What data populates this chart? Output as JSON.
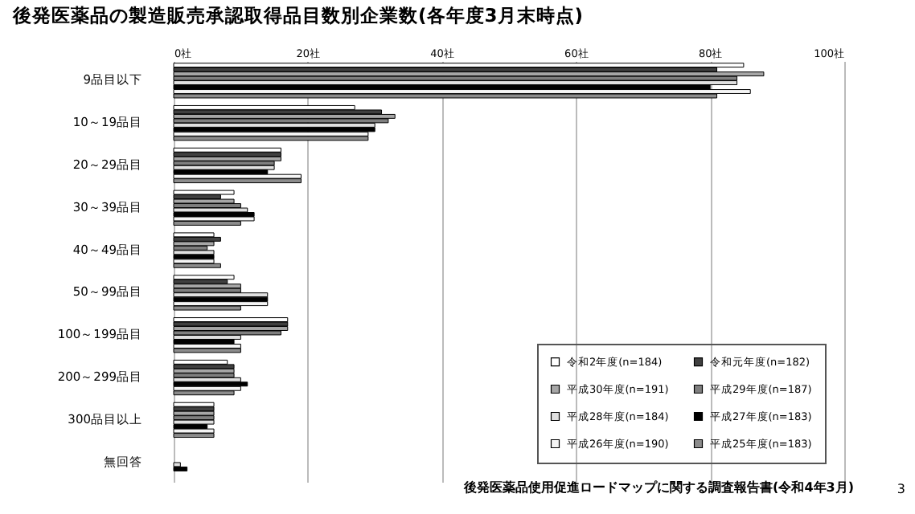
{
  "chart_data": {
    "type": "bar",
    "orientation": "horizontal",
    "title": "後発医薬品の製造販売承認取得品目数別企業数(各年度3月末時点)",
    "categories": [
      "9品目以下",
      "10～19品目",
      "20～29品目",
      "30～39品目",
      "40～49品目",
      "50～99品目",
      "100～199品目",
      "200～299品目",
      "300品目以上",
      "無回答"
    ],
    "series": [
      {
        "name": "令和2年度(n=184)",
        "color": "#ffffff",
        "values": [
          85,
          27,
          16,
          9,
          6,
          9,
          17,
          8,
          6,
          0
        ]
      },
      {
        "name": "令和元年度(n=182)",
        "color": "#404040",
        "values": [
          81,
          31,
          16,
          7,
          7,
          8,
          17,
          9,
          6,
          0
        ]
      },
      {
        "name": "平成30年度(n=191)",
        "color": "#a6a6a6",
        "values": [
          88,
          33,
          16,
          9,
          6,
          10,
          17,
          9,
          6,
          0
        ]
      },
      {
        "name": "平成29年度(n=187)",
        "color": "#7f7f7f",
        "values": [
          84,
          32,
          15,
          10,
          5,
          10,
          16,
          9,
          6,
          0
        ]
      },
      {
        "name": "平成28年度(n=184)",
        "color": "#e0e0e0",
        "values": [
          84,
          30,
          15,
          11,
          6,
          14,
          10,
          10,
          6,
          1
        ]
      },
      {
        "name": "平成27年度(n=183)",
        "color": "#000000",
        "values": [
          80,
          30,
          14,
          12,
          6,
          14,
          9,
          11,
          5,
          2
        ]
      },
      {
        "name": "平成26年度(n=190)",
        "color": "#f5f5f5",
        "values": [
          86,
          29,
          19,
          12,
          6,
          14,
          10,
          10,
          6,
          0
        ]
      },
      {
        "name": "平成25年度(n=183)",
        "color": "#8c8c8c",
        "values": [
          81,
          29,
          19,
          10,
          7,
          10,
          10,
          9,
          6,
          0
        ]
      }
    ],
    "xlim": [
      0,
      100
    ],
    "xticks": [
      {
        "value": 0,
        "label": "0社"
      },
      {
        "value": 20,
        "label": "20社"
      },
      {
        "value": 40,
        "label": "40社"
      },
      {
        "value": 60,
        "label": "60社"
      },
      {
        "value": 80,
        "label": "80社"
      },
      {
        "value": 100,
        "label": "100社"
      }
    ],
    "grid": "x",
    "legend": "bottom right",
    "annotations": [
      "後発医薬品使用促進ロードマップに関する調査報告書(令和4年3月)",
      "3"
    ]
  }
}
